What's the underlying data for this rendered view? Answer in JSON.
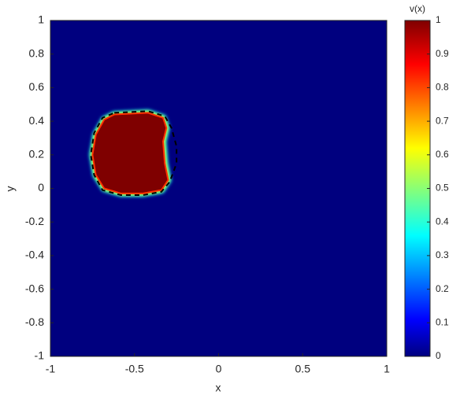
{
  "chart_data": {
    "type": "heatmap",
    "xlabel": "x",
    "ylabel": "y",
    "xlim": [
      -1,
      1
    ],
    "ylim": [
      -1,
      1
    ],
    "xticks": [
      -1,
      -0.5,
      0,
      0.5,
      1
    ],
    "yticks": [
      -1,
      -0.8,
      -0.6,
      -0.4,
      -0.2,
      0,
      0.2,
      0.4,
      0.6,
      0.8,
      1
    ],
    "background_value": 0,
    "regions": [
      {
        "value": 1,
        "points": [
          [
            -0.62,
            0.44
          ],
          [
            -0.42,
            0.45
          ],
          [
            -0.33,
            0.42
          ],
          [
            -0.31,
            0.36
          ],
          [
            -0.33,
            0.28
          ],
          [
            -0.32,
            0.15
          ],
          [
            -0.3,
            0.05
          ],
          [
            -0.34,
            -0.01
          ],
          [
            -0.45,
            -0.03
          ],
          [
            -0.58,
            -0.03
          ],
          [
            -0.68,
            0.0
          ],
          [
            -0.73,
            0.08
          ],
          [
            -0.75,
            0.2
          ],
          [
            -0.73,
            0.32
          ],
          [
            -0.68,
            0.41
          ]
        ]
      }
    ],
    "contour": [
      [
        -0.62,
        0.45
      ],
      [
        -0.42,
        0.46
      ],
      [
        -0.32,
        0.43
      ],
      [
        -0.28,
        0.36
      ],
      [
        -0.25,
        0.25
      ],
      [
        -0.25,
        0.15
      ],
      [
        -0.29,
        0.04
      ],
      [
        -0.34,
        -0.02
      ],
      [
        -0.45,
        -0.04
      ],
      [
        -0.58,
        -0.04
      ],
      [
        -0.69,
        -0.01
      ],
      [
        -0.74,
        0.08
      ],
      [
        -0.76,
        0.2
      ],
      [
        -0.74,
        0.33
      ],
      [
        -0.69,
        0.42
      ],
      [
        -0.62,
        0.45
      ]
    ],
    "colorbar": {
      "label": "v(x)",
      "clim": [
        0,
        1
      ],
      "ticks": [
        0,
        0.1,
        0.2,
        0.3,
        0.4,
        0.5,
        0.6,
        0.7,
        0.8,
        0.9,
        1
      ],
      "colormap": "jet"
    }
  }
}
